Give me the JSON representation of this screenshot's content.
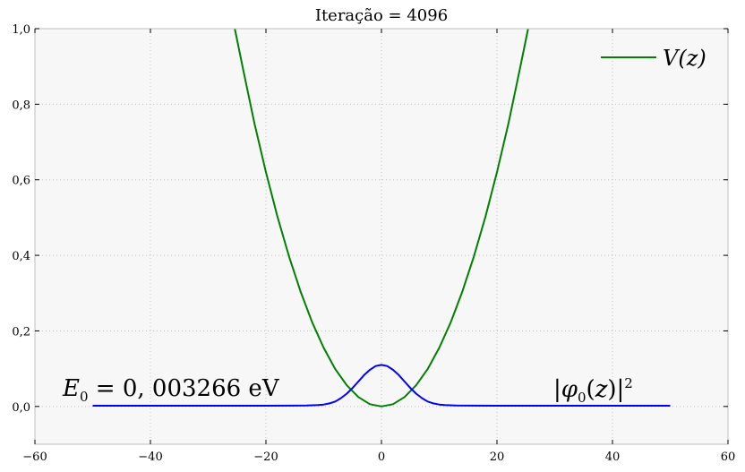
{
  "chart_data": {
    "type": "line",
    "title": "Iteração = 4096",
    "xlim": [
      -60,
      60
    ],
    "ylim": [
      -0.1,
      1.0
    ],
    "xticks": [
      -60,
      -40,
      -20,
      0,
      20,
      40,
      60
    ],
    "xtick_labels": [
      "−60",
      "−40",
      "−20",
      "0",
      "20",
      "40",
      "60"
    ],
    "yticks": [
      0.0,
      0.2,
      0.4,
      0.6,
      0.8,
      1.0
    ],
    "ytick_labels": [
      "0,0",
      "0,2",
      "0,4",
      "0,6",
      "0,8",
      "1,0"
    ],
    "grid": true,
    "legend_position": "top-right",
    "colors": {
      "potential": "#008000",
      "wavefunction": "#0000ff",
      "background": "#f7f7f7",
      "grid": "#bfbfbf"
    },
    "series": [
      {
        "name": "V(z)",
        "color": "#008000",
        "x": [
          -25.4,
          -24,
          -22,
          -20,
          -18,
          -16,
          -14,
          -12,
          -10,
          -8,
          -6,
          -4,
          -2,
          0,
          2,
          4,
          6,
          8,
          10,
          12,
          14,
          16,
          18,
          20,
          22,
          24,
          25.4
        ],
        "y": [
          1.0,
          0.896,
          0.75,
          0.62,
          0.502,
          0.397,
          0.304,
          0.223,
          0.155,
          0.099,
          0.056,
          0.025,
          0.006,
          0.0,
          0.006,
          0.025,
          0.056,
          0.099,
          0.155,
          0.223,
          0.304,
          0.397,
          0.502,
          0.62,
          0.75,
          0.896,
          1.0
        ]
      },
      {
        "label": "|φ0(z)|^2",
        "color": "#0000ff",
        "x": [
          -50,
          -20,
          -15,
          -13,
          -11,
          -10,
          -9,
          -8,
          -7,
          -6,
          -5,
          -4,
          -3,
          -2,
          -1,
          0,
          1,
          2,
          3,
          4,
          5,
          6,
          7,
          8,
          9,
          10,
          11,
          13,
          15,
          20,
          50
        ],
        "y": [
          0.002,
          0.002,
          0.0021,
          0.0024,
          0.0035,
          0.005,
          0.008,
          0.013,
          0.022,
          0.034,
          0.049,
          0.066,
          0.083,
          0.097,
          0.107,
          0.11,
          0.107,
          0.097,
          0.083,
          0.066,
          0.049,
          0.034,
          0.022,
          0.013,
          0.008,
          0.005,
          0.0035,
          0.0024,
          0.0021,
          0.002,
          0.002
        ]
      }
    ],
    "annotations": [
      {
        "text": "E0 = 0, 003266 eV",
        "x": -55,
        "y": 0.03
      },
      {
        "text": "|φ0(z)|²",
        "x": 29,
        "y": 0.03
      }
    ]
  }
}
